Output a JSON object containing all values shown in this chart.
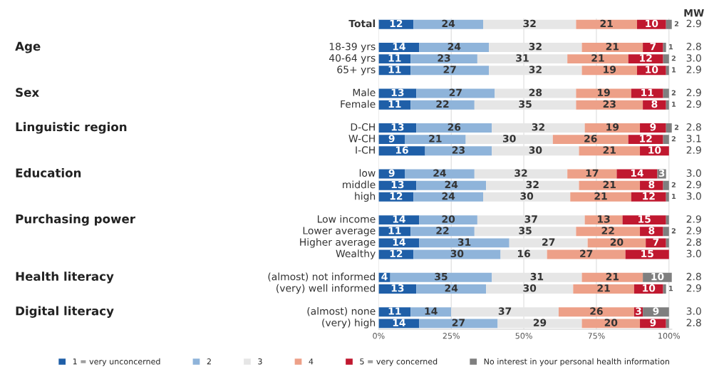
{
  "chart_data": {
    "type": "bar",
    "orientation": "horizontal",
    "stacked": true,
    "categories": [
      "Total",
      null,
      "18-39 yrs",
      "40-64 yrs",
      "65+ yrs",
      null,
      "Male",
      "Female",
      null,
      "D-CH",
      "W-CH",
      "I-CH",
      null,
      "low",
      "middle",
      "high",
      null,
      "Low income",
      "Lower average",
      "Higher average",
      "Wealthy",
      null,
      "(almost) not informed",
      "(very) well informed",
      null,
      "(almost) none",
      "(very) high"
    ],
    "series": [
      {
        "name": "1 = very unconcerned",
        "color": "#1f5fa8",
        "values": [
          12,
          null,
          14,
          11,
          11,
          null,
          13,
          11,
          null,
          13,
          9,
          16,
          null,
          9,
          13,
          12,
          null,
          14,
          11,
          14,
          12,
          null,
          4,
          13,
          null,
          11,
          14
        ]
      },
      {
        "name": "2",
        "color": "#8fb4da",
        "values": [
          24,
          null,
          24,
          23,
          27,
          null,
          27,
          22,
          null,
          26,
          21,
          23,
          null,
          24,
          24,
          24,
          null,
          20,
          22,
          31,
          30,
          null,
          35,
          24,
          null,
          14,
          27
        ]
      },
      {
        "name": "3",
        "color": "#e6e6e6",
        "values": [
          32,
          null,
          32,
          31,
          32,
          null,
          28,
          35,
          null,
          32,
          30,
          30,
          null,
          32,
          32,
          30,
          null,
          37,
          35,
          27,
          16,
          null,
          31,
          30,
          null,
          37,
          29
        ]
      },
      {
        "name": "4",
        "color": "#eda088",
        "values": [
          21,
          null,
          21,
          21,
          19,
          null,
          19,
          23,
          null,
          19,
          26,
          21,
          null,
          17,
          21,
          21,
          null,
          13,
          22,
          20,
          27,
          null,
          21,
          21,
          null,
          26,
          20
        ]
      },
      {
        "name": "5 = very concerned",
        "color": "#c0182f",
        "values": [
          10,
          null,
          7,
          12,
          10,
          null,
          11,
          8,
          null,
          9,
          12,
          10,
          null,
          14,
          8,
          12,
          null,
          15,
          8,
          7,
          15,
          null,
          null,
          10,
          null,
          3,
          9
        ]
      },
      {
        "name": "No interest in your personal health information",
        "color": "#7f7f7f",
        "values": [
          2,
          null,
          1,
          2,
          1,
          null,
          2,
          1,
          null,
          2,
          2,
          null,
          null,
          3,
          2,
          1,
          null,
          1,
          2,
          1,
          null,
          null,
          10,
          1,
          null,
          9,
          1
        ],
        "value_labels": [
          "2",
          null,
          "1",
          "2",
          "1",
          null,
          "2",
          "1",
          null,
          "2",
          "2",
          null,
          null,
          "3",
          "2",
          "1",
          null,
          null,
          "2",
          null,
          null,
          null,
          "10",
          "1",
          null,
          "9",
          null
        ]
      }
    ],
    "data_labels": true,
    "xlim": [
      0,
      101
    ],
    "xticks": [
      {
        "value": 0,
        "label": "0%"
      },
      {
        "value": 25,
        "label": "25%"
      },
      {
        "value": 50,
        "label": "50%"
      },
      {
        "value": 75,
        "label": "75%"
      },
      {
        "value": 100,
        "label": "100%"
      }
    ],
    "grid": "x",
    "legend": "bottom",
    "annotations": [
      "MW",
      "Age",
      "Sex",
      "Linguistic region",
      "Education",
      "Purchasing power",
      "Health literacy",
      "Digital literacy",
      "2.9",
      "2.8",
      "3.0",
      "2.9",
      "2.9",
      "2.9",
      "2.8",
      "3.1",
      "2.9",
      "3.0",
      "2.9",
      "3.0",
      "2.9",
      "2.9",
      "2.8",
      "3.0",
      "2.8",
      "2.9",
      "3.0",
      "2.8"
    ]
  }
}
